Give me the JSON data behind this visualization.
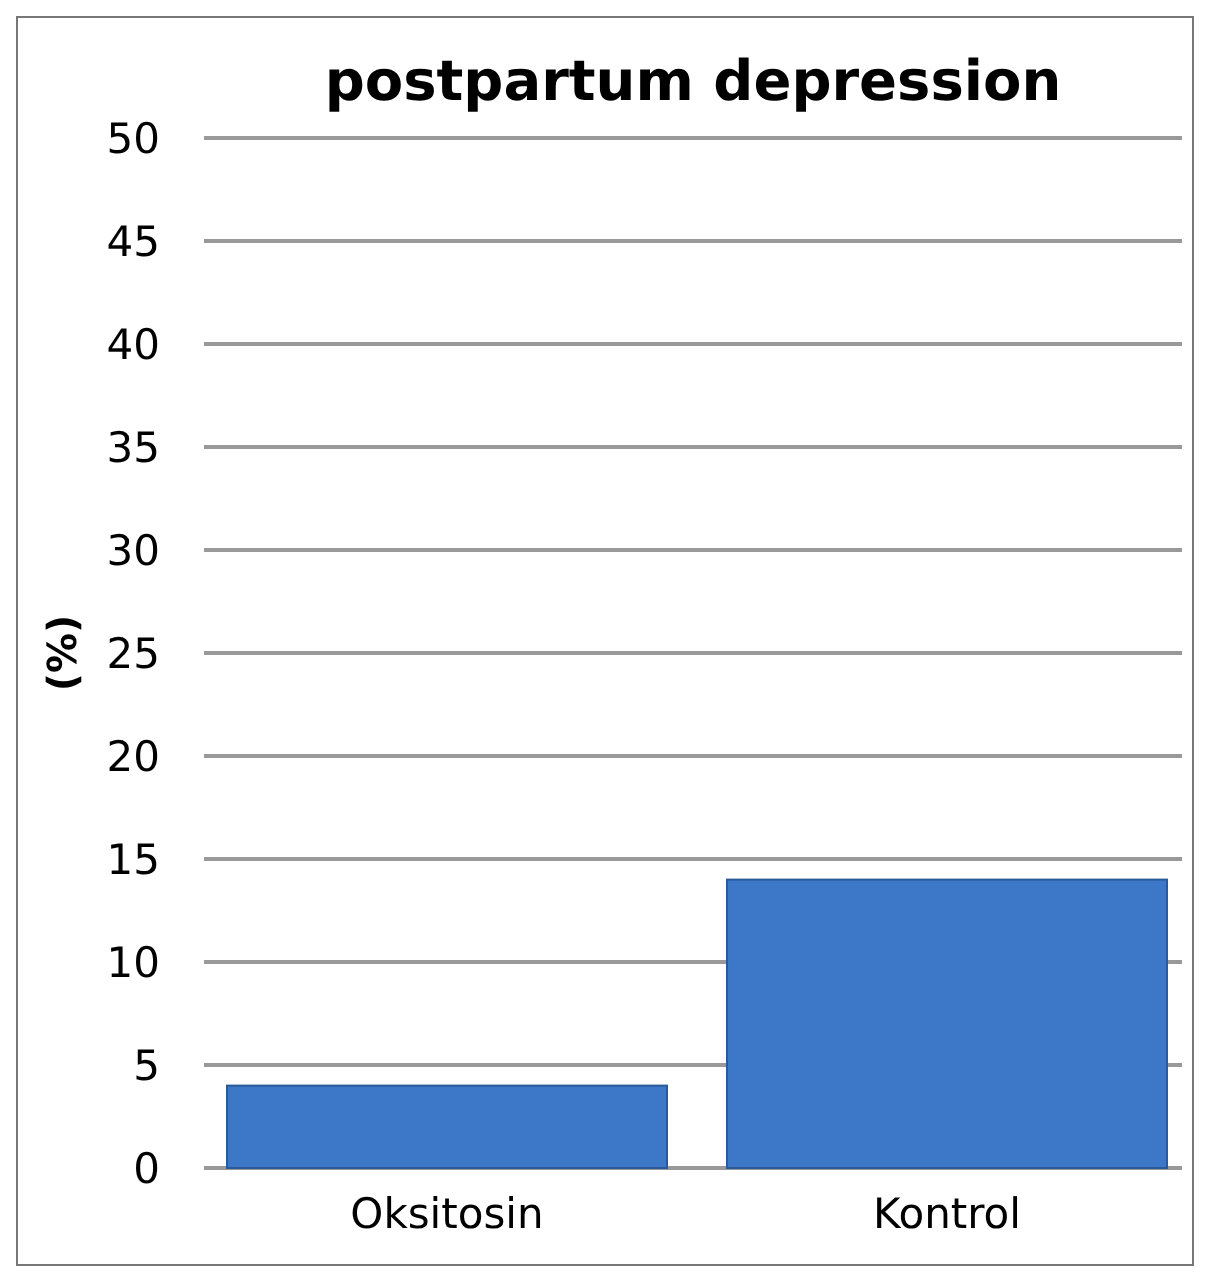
{
  "chart_data": {
    "type": "bar",
    "title": "postpartum depression",
    "ylabel": "(%)",
    "categories": [
      "Oksitosin",
      "Kontrol"
    ],
    "values": [
      4,
      14
    ],
    "color": "#3d78c8",
    "ylim": [
      0,
      50
    ],
    "yticks": [
      0,
      5,
      10,
      15,
      20,
      25,
      30,
      35,
      40,
      45,
      50
    ],
    "grid": "y"
  }
}
